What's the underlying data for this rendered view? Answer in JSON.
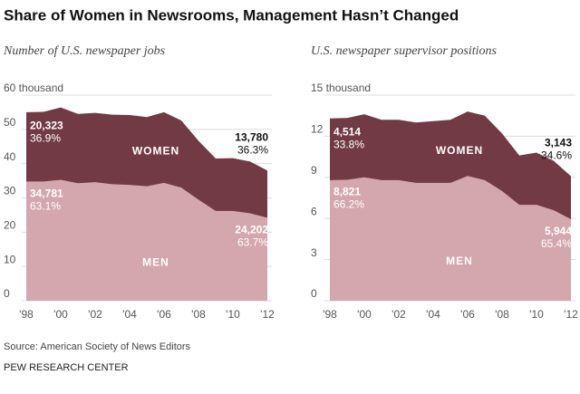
{
  "title": "Share of Women in Newsrooms, Management Hasn’t Changed",
  "source": "Source: American Society of News Editors",
  "credit": "PEW RESEARCH CENTER",
  "chart_data": [
    {
      "type": "area",
      "title": "Number of U.S. newspaper jobs",
      "categories": [
        "'98",
        null,
        "'00",
        null,
        "'02",
        null,
        "'04",
        null,
        "'06",
        null,
        "'08",
        null,
        "'10",
        null,
        "'12"
      ],
      "series": [
        {
          "name": "MEN",
          "color": "#d4a6ad",
          "values": [
            34.8,
            34.781,
            35.3,
            34.3,
            34.6,
            34.0,
            33.8,
            33.4,
            34.4,
            33.0,
            29.5,
            26.2,
            26.2,
            25.5,
            24.202
          ],
          "value_labels": [
            null,
            "34,781",
            null,
            null,
            null,
            null,
            null,
            null,
            null,
            null,
            null,
            null,
            null,
            null,
            "24,202"
          ],
          "share_labels": [
            null,
            "63.1%",
            null,
            null,
            null,
            null,
            null,
            null,
            null,
            null,
            null,
            null,
            null,
            null,
            "63.7%"
          ]
        },
        {
          "name": "WOMEN",
          "color": "#713a44",
          "values": [
            20.2,
            20.323,
            21.1,
            20.2,
            20.2,
            20.3,
            20.4,
            20.2,
            20.6,
            19.6,
            17.2,
            15.3,
            15.4,
            15.1,
            13.78
          ],
          "value_labels": [
            null,
            "20,323",
            null,
            null,
            null,
            null,
            null,
            null,
            null,
            null,
            null,
            null,
            null,
            null,
            "13,780"
          ],
          "share_labels": [
            null,
            "36.9%",
            null,
            null,
            null,
            null,
            null,
            null,
            null,
            null,
            null,
            null,
            null,
            null,
            "36.3%"
          ]
        }
      ],
      "ylim": [
        0,
        60
      ],
      "yticks": [
        0,
        10,
        20,
        30,
        40,
        50,
        {
          "value": 60,
          "label": "60 thousand"
        }
      ],
      "grid": true
    },
    {
      "type": "area",
      "title": "U.S. newspaper supervisor positions",
      "categories": [
        "'98",
        null,
        "'00",
        null,
        "'02",
        null,
        "'04",
        null,
        "'06",
        null,
        "'08",
        null,
        "'10",
        null,
        "'12"
      ],
      "series": [
        {
          "name": "MEN",
          "color": "#d4a6ad",
          "values": [
            8.8,
            8.821,
            9.0,
            8.8,
            8.8,
            8.6,
            8.6,
            8.6,
            9.1,
            8.8,
            8.0,
            7.0,
            7.0,
            6.6,
            5.944
          ],
          "value_labels": [
            null,
            "8,821",
            null,
            null,
            null,
            null,
            null,
            null,
            null,
            null,
            null,
            null,
            null,
            null,
            "5,944"
          ],
          "share_labels": [
            null,
            "66.2%",
            null,
            null,
            null,
            null,
            null,
            null,
            null,
            null,
            null,
            null,
            null,
            null,
            "65.4%"
          ]
        },
        {
          "name": "WOMEN",
          "color": "#713a44",
          "values": [
            4.5,
            4.514,
            4.6,
            4.4,
            4.4,
            4.4,
            4.5,
            4.6,
            4.7,
            4.7,
            4.2,
            3.6,
            3.8,
            3.6,
            3.143
          ],
          "value_labels": [
            null,
            "4,514",
            null,
            null,
            null,
            null,
            null,
            null,
            null,
            null,
            null,
            null,
            null,
            null,
            "3,143"
          ],
          "share_labels": [
            null,
            "33.8%",
            null,
            null,
            null,
            null,
            null,
            null,
            null,
            null,
            null,
            null,
            null,
            null,
            "34.6%"
          ]
        }
      ],
      "ylim": [
        0,
        15
      ],
      "yticks": [
        0,
        3,
        6,
        9,
        12,
        {
          "value": 15,
          "label": "15 thousand"
        }
      ],
      "grid": true
    }
  ]
}
